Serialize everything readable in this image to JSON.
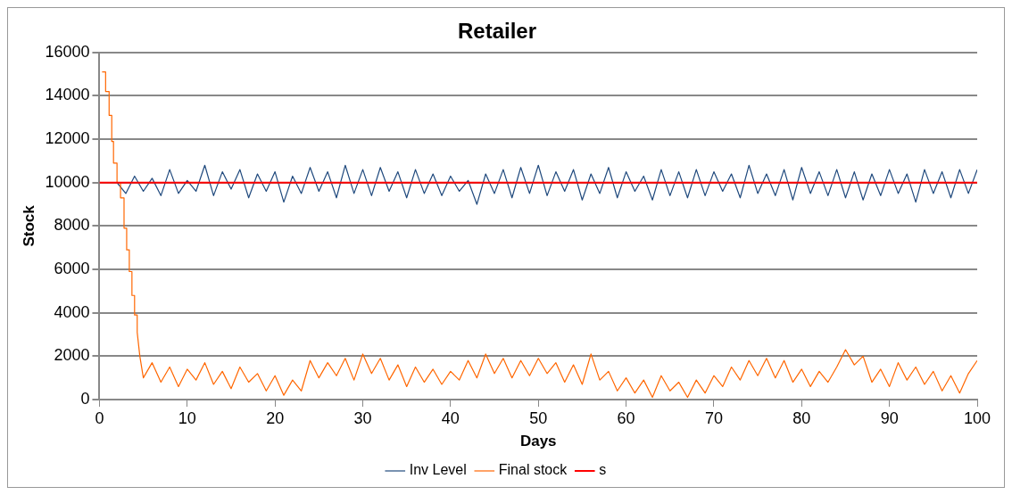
{
  "chart_data": {
    "type": "line",
    "title": "Retailer",
    "xlabel": "Days",
    "ylabel": "Stock",
    "legend": "bottom",
    "grid": "y",
    "marker": "none",
    "line_style": "solid",
    "xlim": [
      0,
      100
    ],
    "xticks": [
      0,
      10,
      20,
      30,
      40,
      50,
      60,
      70,
      80,
      90,
      100
    ],
    "ylim": [
      0,
      16000
    ],
    "yticks": [
      0,
      2000,
      4000,
      6000,
      8000,
      10000,
      12000,
      14000,
      16000
    ],
    "series": [
      {
        "name": "Inv Level",
        "color": "#1f497d",
        "x": [
          2,
          3,
          4,
          5,
          6,
          7,
          8,
          9,
          10,
          11,
          12,
          13,
          14,
          15,
          16,
          17,
          18,
          19,
          20,
          21,
          22,
          23,
          24,
          25,
          26,
          27,
          28,
          29,
          30,
          31,
          32,
          33,
          34,
          35,
          36,
          37,
          38,
          39,
          40,
          41,
          42,
          43,
          44,
          45,
          46,
          47,
          48,
          49,
          50,
          51,
          52,
          53,
          54,
          55,
          56,
          57,
          58,
          59,
          60,
          61,
          62,
          63,
          64,
          65,
          66,
          67,
          68,
          69,
          70,
          71,
          72,
          73,
          74,
          75,
          76,
          77,
          78,
          79,
          80,
          81,
          82,
          83,
          84,
          85,
          86,
          87,
          88,
          89,
          90,
          91,
          92,
          93,
          94,
          95,
          96,
          97,
          98,
          99,
          100
        ],
        "values": [
          10000,
          9500,
          10300,
          9600,
          10200,
          9400,
          10600,
          9500,
          10100,
          9600,
          10800,
          9400,
          10500,
          9700,
          10600,
          9300,
          10400,
          9600,
          10500,
          9100,
          10300,
          9500,
          10700,
          9600,
          10500,
          9300,
          10800,
          9500,
          10600,
          9400,
          10700,
          9600,
          10500,
          9300,
          10600,
          9500,
          10400,
          9400,
          10300,
          9600,
          10100,
          9000,
          10400,
          9500,
          10600,
          9300,
          10700,
          9500,
          10800,
          9400,
          10500,
          9600,
          10600,
          9200,
          10400,
          9500,
          10700,
          9300,
          10500,
          9600,
          10300,
          9200,
          10600,
          9400,
          10500,
          9300,
          10600,
          9400,
          10500,
          9600,
          10400,
          9300,
          10800,
          9500,
          10400,
          9400,
          10600,
          9200,
          10700,
          9500,
          10500,
          9400,
          10600,
          9300,
          10500,
          9200,
          10400,
          9400,
          10600,
          9500,
          10400,
          9100,
          10600,
          9500,
          10500,
          9300,
          10600,
          9500,
          10600
        ]
      },
      {
        "name": "Final stock",
        "color": "#ff6600",
        "x": [
          0.3,
          0.7,
          0.7,
          1.1,
          1.1,
          1.4,
          1.4,
          1.6,
          1.6,
          2.0,
          2.0,
          2.4,
          2.4,
          2.8,
          2.8,
          3.1,
          3.1,
          3.4,
          3.4,
          3.7,
          3.7,
          4.0,
          4.0,
          4.3,
          4.3,
          4.6,
          5,
          6,
          7,
          8,
          9,
          10,
          11,
          12,
          13,
          14,
          15,
          16,
          17,
          18,
          19,
          20,
          21,
          22,
          23,
          24,
          25,
          26,
          27,
          28,
          29,
          30,
          31,
          32,
          33,
          34,
          35,
          36,
          37,
          38,
          39,
          40,
          41,
          42,
          43,
          44,
          45,
          46,
          47,
          48,
          49,
          50,
          51,
          52,
          53,
          54,
          55,
          56,
          57,
          58,
          59,
          60,
          61,
          62,
          63,
          64,
          65,
          66,
          67,
          68,
          69,
          70,
          71,
          72,
          73,
          74,
          75,
          76,
          77,
          78,
          79,
          80,
          81,
          82,
          83,
          84,
          85,
          86,
          87,
          88,
          89,
          90,
          91,
          92,
          93,
          94,
          95,
          96,
          97,
          98,
          99,
          100
        ],
        "values": [
          15100,
          15100,
          14200,
          14200,
          13100,
          13100,
          11900,
          11900,
          10900,
          10900,
          10000,
          10000,
          9300,
          9300,
          7900,
          7900,
          6900,
          6900,
          5900,
          5900,
          4800,
          4800,
          3900,
          3900,
          3100,
          2000,
          1000,
          1700,
          800,
          1500,
          600,
          1400,
          900,
          1700,
          700,
          1300,
          500,
          1500,
          800,
          1200,
          400,
          1100,
          200,
          900,
          400,
          1800,
          1000,
          1700,
          1100,
          1900,
          900,
          2100,
          1200,
          1900,
          900,
          1600,
          600,
          1500,
          800,
          1400,
          700,
          1300,
          900,
          1800,
          1000,
          2100,
          1200,
          1900,
          1000,
          1800,
          1100,
          1900,
          1200,
          1700,
          800,
          1600,
          700,
          2100,
          900,
          1300,
          400,
          1000,
          300,
          900,
          100,
          1100,
          400,
          800,
          100,
          900,
          300,
          1100,
          600,
          1500,
          900,
          1800,
          1100,
          1900,
          1000,
          1800,
          800,
          1400,
          600,
          1300,
          800,
          1500,
          2300,
          1600,
          2000,
          800,
          1400,
          600,
          1700,
          900,
          1500,
          700,
          1300,
          400,
          1100,
          300,
          1200,
          1800
        ]
      },
      {
        "name": "s",
        "color": "#ff0000",
        "x": [
          0,
          100
        ],
        "values": [
          10000,
          10000
        ]
      }
    ]
  }
}
